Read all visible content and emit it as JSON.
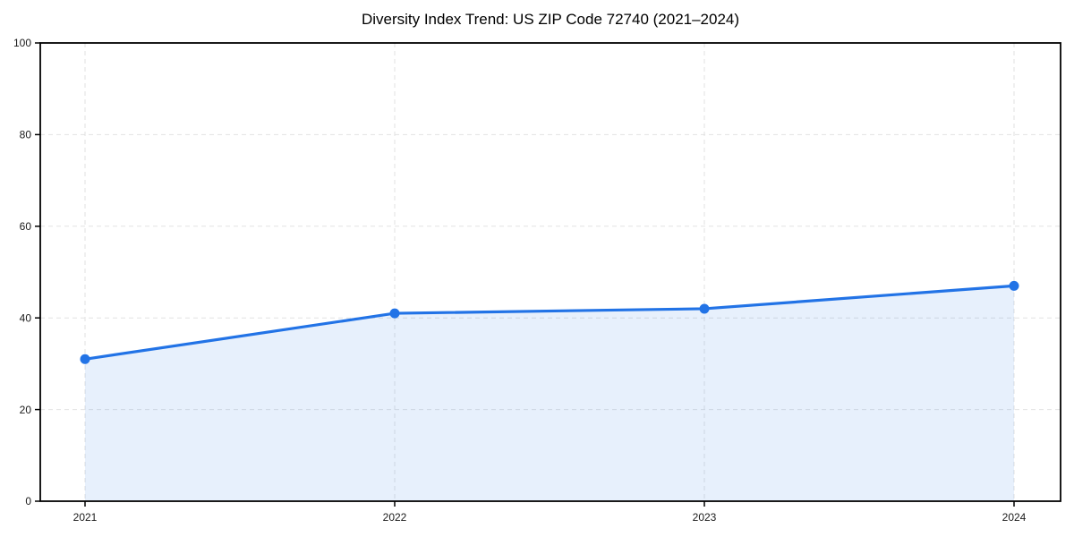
{
  "chart": {
    "title": "Diversity Index Trend: US ZIP Code 72740 (2021–2024)"
  },
  "chart_data": {
    "type": "line",
    "title": "Diversity Index Trend: US ZIP Code 72740 (2021–2024)",
    "x": [
      "2021",
      "2022",
      "2023",
      "2024"
    ],
    "series": [
      {
        "name": "Diversity Index",
        "values": [
          31,
          41,
          42,
          47
        ]
      }
    ],
    "xlabel": "",
    "ylabel": "",
    "ylim": [
      0,
      100
    ],
    "yticks": [
      0,
      20,
      40,
      60,
      80,
      100
    ],
    "grid": true,
    "grid_style": "dashed",
    "legend_position": "none",
    "area_fill": true,
    "markers": "circle",
    "colors": {
      "line": "#2273e6",
      "marker": "#2273e6",
      "area_fill": "#2273e6",
      "area_fill_opacity": "0.11",
      "grid": "#e2e2e2",
      "axis": "#000000",
      "tick_text": "#1a1a1a",
      "background": "#ffffff"
    }
  }
}
